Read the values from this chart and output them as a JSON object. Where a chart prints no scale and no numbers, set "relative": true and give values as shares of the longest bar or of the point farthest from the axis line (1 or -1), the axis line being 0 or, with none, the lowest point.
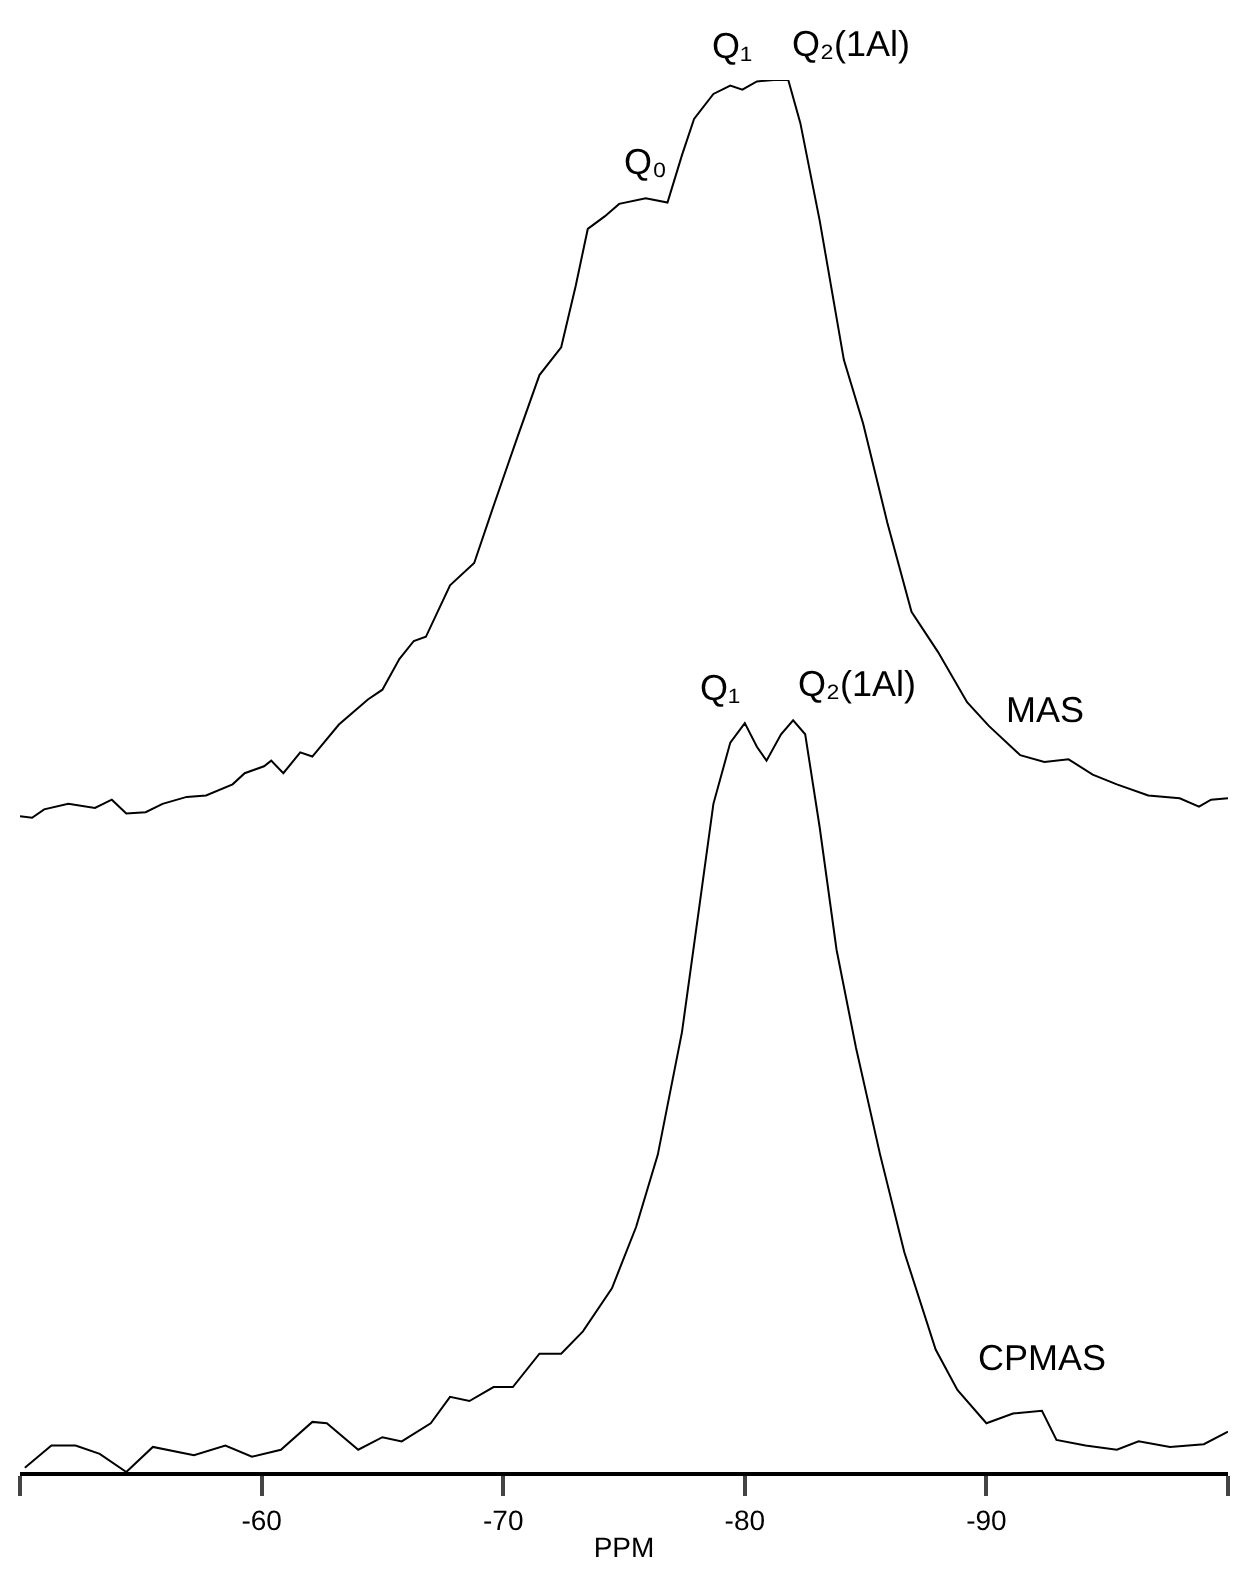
{
  "chart_data": {
    "type": "line",
    "relative": true,
    "xlabel": "PPM",
    "xlim": [
      -50,
      -100
    ],
    "xticks": [
      {
        "value": -50,
        "label": null
      },
      -60,
      -70,
      -80,
      -90,
      {
        "value": -100,
        "label": null
      }
    ],
    "legend": false,
    "marker": "none",
    "line_style": "solid",
    "series": [
      {
        "name": "MAS",
        "color": "#000000",
        "x": [
          -50.0,
          -50.5,
          -51.0,
          -52.0,
          -53.1,
          -53.8,
          -54.4,
          -55.2,
          -55.9,
          -56.9,
          -57.7,
          -58.8,
          -59.3,
          -60.1,
          -60.4,
          -60.9,
          -61.6,
          -62.1,
          -63.2,
          -64.4,
          -65.0,
          -65.7,
          -66.3,
          -66.8,
          -67.8,
          -68.8,
          -69.6,
          -70.6,
          -71.5,
          -72.4,
          -73.0,
          -73.5,
          -74.2,
          -74.8,
          -75.9,
          -76.8,
          -77.4,
          -77.9,
          -78.7,
          -79.4,
          -79.9,
          -80.5,
          -81.2,
          -81.8,
          -82.3,
          -83.1,
          -84.1,
          -84.9,
          -85.9,
          -86.9,
          -88.0,
          -89.2,
          -90.1,
          -91.4,
          -92.4,
          -93.4,
          -94.4,
          -95.4,
          -96.7,
          -98.0,
          -98.8,
          -99.3,
          -100.0
        ],
        "values": [
          0.471,
          0.47,
          0.476,
          0.48,
          0.477,
          0.483,
          0.473,
          0.474,
          0.48,
          0.485,
          0.486,
          0.494,
          0.502,
          0.507,
          0.511,
          0.502,
          0.517,
          0.514,
          0.537,
          0.555,
          0.562,
          0.584,
          0.597,
          0.6,
          0.637,
          0.653,
          0.694,
          0.744,
          0.788,
          0.808,
          0.852,
          0.893,
          0.902,
          0.911,
          0.915,
          0.912,
          0.946,
          0.972,
          0.99,
          0.996,
          0.993,
          0.999,
          1.0,
          1.0,
          0.969,
          0.899,
          0.799,
          0.753,
          0.682,
          0.618,
          0.589,
          0.553,
          0.536,
          0.515,
          0.51,
          0.512,
          0.501,
          0.494,
          0.486,
          0.484,
          0.478,
          0.483,
          0.484
        ]
      },
      {
        "name": "CPMAS",
        "color": "#000000",
        "x": [
          -50.2,
          -51.3,
          -52.3,
          -53.3,
          -54.4,
          -55.5,
          -57.2,
          -58.5,
          -59.6,
          -60.8,
          -62.1,
          -62.7,
          -64.0,
          -65.0,
          -65.8,
          -67.0,
          -67.8,
          -68.6,
          -69.6,
          -70.4,
          -71.5,
          -72.4,
          -73.3,
          -74.5,
          -75.5,
          -76.4,
          -77.4,
          -78.1,
          -78.7,
          -79.4,
          -80.0,
          -80.5,
          -80.9,
          -81.5,
          -82.0,
          -82.5,
          -83.1,
          -83.8,
          -84.6,
          -85.6,
          -86.6,
          -87.9,
          -88.8,
          -90.0,
          -91.1,
          -92.3,
          -92.9,
          -94.1,
          -95.4,
          -96.3,
          -97.6,
          -99.0,
          -100.0
        ],
        "values": [
          0.003,
          0.019,
          0.019,
          0.013,
          0.0,
          0.018,
          0.012,
          0.019,
          0.011,
          0.016,
          0.036,
          0.035,
          0.016,
          0.025,
          0.022,
          0.035,
          0.054,
          0.051,
          0.061,
          0.061,
          0.085,
          0.085,
          0.101,
          0.132,
          0.176,
          0.228,
          0.316,
          0.404,
          0.48,
          0.524,
          0.538,
          0.521,
          0.511,
          0.53,
          0.54,
          0.53,
          0.463,
          0.375,
          0.305,
          0.228,
          0.158,
          0.088,
          0.059,
          0.035,
          0.042,
          0.044,
          0.023,
          0.019,
          0.016,
          0.022,
          0.018,
          0.02,
          0.029
        ]
      }
    ],
    "annotations": [
      {
        "text": "Q₀",
        "x": -75.9,
        "y": 0.915
      },
      {
        "text": "Q₁",
        "x": -80.5,
        "y": 0.999
      },
      {
        "text": "Q₂(1Al)",
        "x": -81.8,
        "y": 1.0
      },
      {
        "text": "Q₁",
        "x": -80.0,
        "y": 0.538
      },
      {
        "text": "Q₂(1Al)",
        "x": -82.0,
        "y": 0.54
      }
    ]
  }
}
